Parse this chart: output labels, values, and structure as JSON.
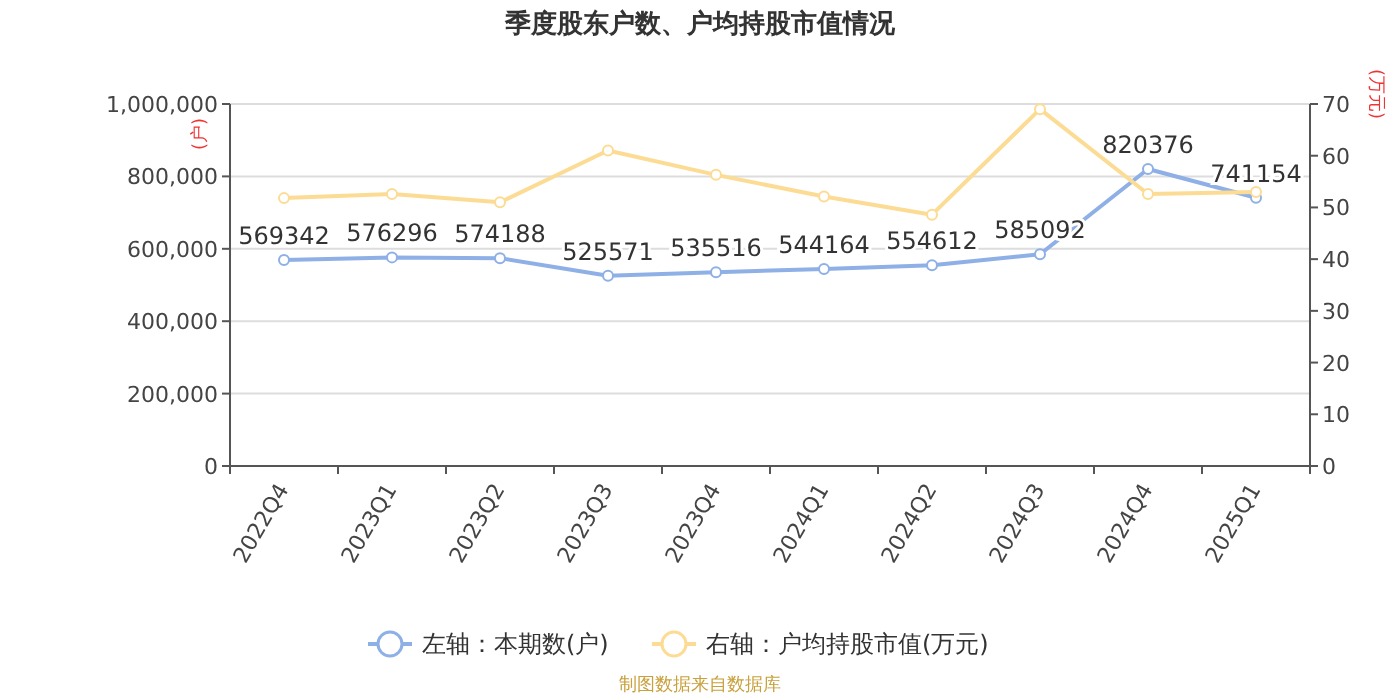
{
  "chart_data": {
    "type": "line",
    "title": "季度股东户数、户均持股市值情况",
    "ylabel": "(户)",
    "y2label": "(万元)",
    "categories": [
      "2022Q4",
      "2023Q1",
      "2023Q2",
      "2023Q3",
      "2023Q4",
      "2024Q1",
      "2024Q2",
      "2024Q3",
      "2024Q4",
      "2025Q1"
    ],
    "series": [
      {
        "name": "左轴：本期数(户)",
        "color": "#8eb0e6",
        "values": [
          569342,
          576296,
          574188,
          525571,
          535516,
          544164,
          554612,
          585092,
          820376,
          741154
        ],
        "value_labels": [
          "569342",
          "576296",
          "574188",
          "525571",
          "535516",
          "544164",
          "554612",
          "585092",
          "820376",
          "741154"
        ]
      },
      {
        "name": "右轴：户均持股市值(万元)",
        "color": "#fcdc94",
        "axis": "y2",
        "values": [
          51.8,
          52.6,
          51.0,
          61.0,
          56.3,
          52.1,
          48.6,
          69.0,
          52.6,
          53.0
        ]
      }
    ],
    "ylim": [
      0,
      1000000
    ],
    "yticks": [
      {
        "value": 0,
        "label": "0"
      },
      {
        "value": 200000,
        "label": "200,000"
      },
      {
        "value": 400000,
        "label": "400,000"
      },
      {
        "value": 600000,
        "label": "600,000"
      },
      {
        "value": 800000,
        "label": "800,000"
      },
      {
        "value": 1000000,
        "label": "1,000,000"
      }
    ],
    "y2lim": [
      0,
      70
    ],
    "y2ticks": [
      0,
      10,
      20,
      30,
      40,
      50,
      60,
      70
    ],
    "grid": "y",
    "legend": "bottom",
    "marker": "circle",
    "line_style": "solid",
    "annotations": [
      "制图数据来自数据库"
    ]
  }
}
